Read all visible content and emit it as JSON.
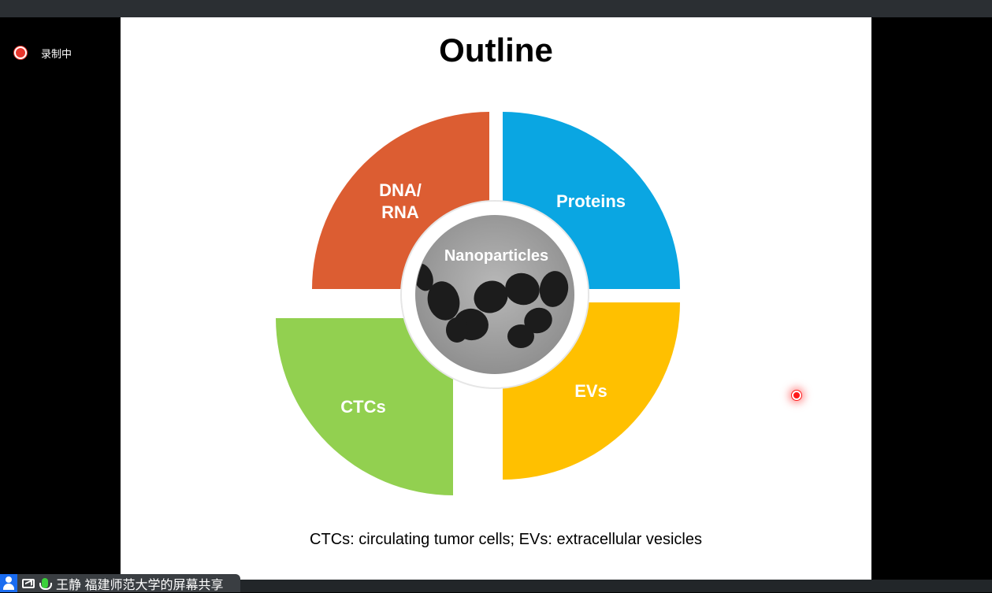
{
  "recording": {
    "label": "录制中"
  },
  "slide": {
    "title": "Outline",
    "segments": {
      "dna_line1": "DNA/",
      "dna_line2": "RNA",
      "proteins": "Proteins",
      "ctcs": "CTCs",
      "evs": "EVs",
      "center": "Nanoparticles"
    },
    "footnote": "CTCs: circulating tumor cells; EVs: extracellular vesicles"
  },
  "share": {
    "label": "王静 福建师范大学的屏幕共享"
  },
  "colors": {
    "dna": "#dc5d32",
    "proteins": "#0aa6e2",
    "ctcs": "#92d050",
    "evs": "#ffc000"
  }
}
